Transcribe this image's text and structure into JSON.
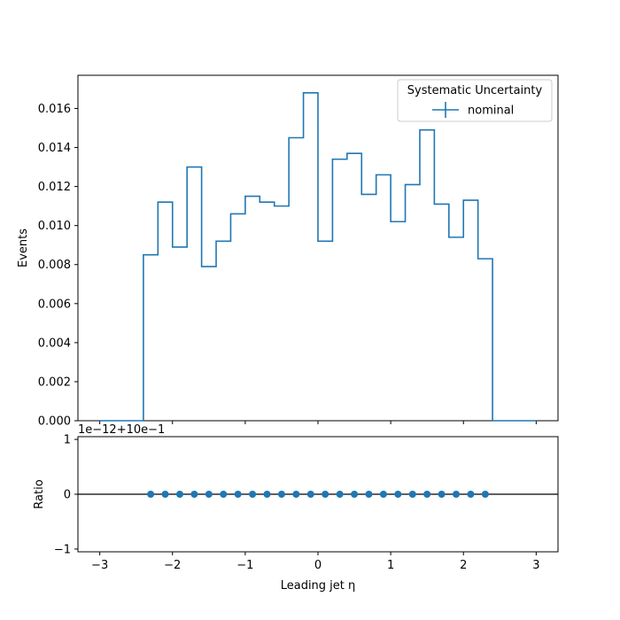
{
  "chart_data": {
    "type": "step-histogram-with-ratio",
    "xlabel": "Leading jet  η",
    "x_ticks": [
      -3,
      -2,
      -1,
      0,
      1,
      2,
      3
    ],
    "x_tick_labels": [
      "−3",
      "−2",
      "−1",
      "0",
      "1",
      "2",
      "3"
    ],
    "xlim": [
      -3.3,
      3.3
    ],
    "main": {
      "ylabel": "Events",
      "ylim": [
        0,
        0.0177
      ],
      "y_ticks": [
        0,
        0.002,
        0.004,
        0.006,
        0.008,
        0.01,
        0.012,
        0.014,
        0.016
      ],
      "y_tick_labels": [
        "0.000",
        "0.002",
        "0.004",
        "0.006",
        "0.008",
        "0.010",
        "0.012",
        "0.014",
        "0.016"
      ],
      "bin_edges": [
        -3.0,
        -2.8,
        -2.6,
        -2.4,
        -2.2,
        -2.0,
        -1.8,
        -1.6,
        -1.4,
        -1.2,
        -1.0,
        -0.8,
        -0.6,
        -0.4,
        -0.2,
        0.0,
        0.2,
        0.4,
        0.6,
        0.8,
        1.0,
        1.2,
        1.4,
        1.6,
        1.8,
        2.0,
        2.2,
        2.4,
        2.6,
        2.8,
        3.0
      ],
      "series": [
        {
          "name": "nominal",
          "color": "#1f77b4",
          "values": [
            0,
            0,
            0,
            0.0085,
            0.0112,
            0.0089,
            0.013,
            0.0079,
            0.0092,
            0.0106,
            0.0115,
            0.0112,
            0.011,
            0.0145,
            0.0168,
            0.0092,
            0.0134,
            0.0137,
            0.0116,
            0.0126,
            0.0102,
            0.0121,
            0.0149,
            0.0111,
            0.0094,
            0.0113,
            0.0083,
            0,
            0,
            0
          ]
        }
      ],
      "legend": {
        "title": "Systematic Uncertainty",
        "placement": "top-right"
      }
    },
    "ratio": {
      "ylabel": "Ratio",
      "offset_label": "1e−12+10e−1",
      "ylim": [
        -1.05,
        1.05
      ],
      "y_ticks": [
        -1,
        0,
        1
      ],
      "y_tick_labels": [
        "−1",
        "0",
        "1"
      ],
      "reference_line": 0,
      "points_x": [
        -2.3,
        -2.1,
        -1.9,
        -1.7,
        -1.5,
        -1.3,
        -1.1,
        -0.9,
        -0.7,
        -0.5,
        -0.3,
        -0.1,
        0.1,
        0.3,
        0.5,
        0.7,
        0.9,
        1.1,
        1.3,
        1.5,
        1.7,
        1.9,
        2.1,
        2.3
      ],
      "points_y": [
        0,
        0,
        0,
        0,
        0,
        0,
        0,
        0,
        0,
        0,
        0,
        0,
        0,
        0,
        0,
        0,
        0,
        0,
        0,
        0,
        0,
        0,
        0,
        0
      ],
      "color": "#1f77b4"
    }
  }
}
